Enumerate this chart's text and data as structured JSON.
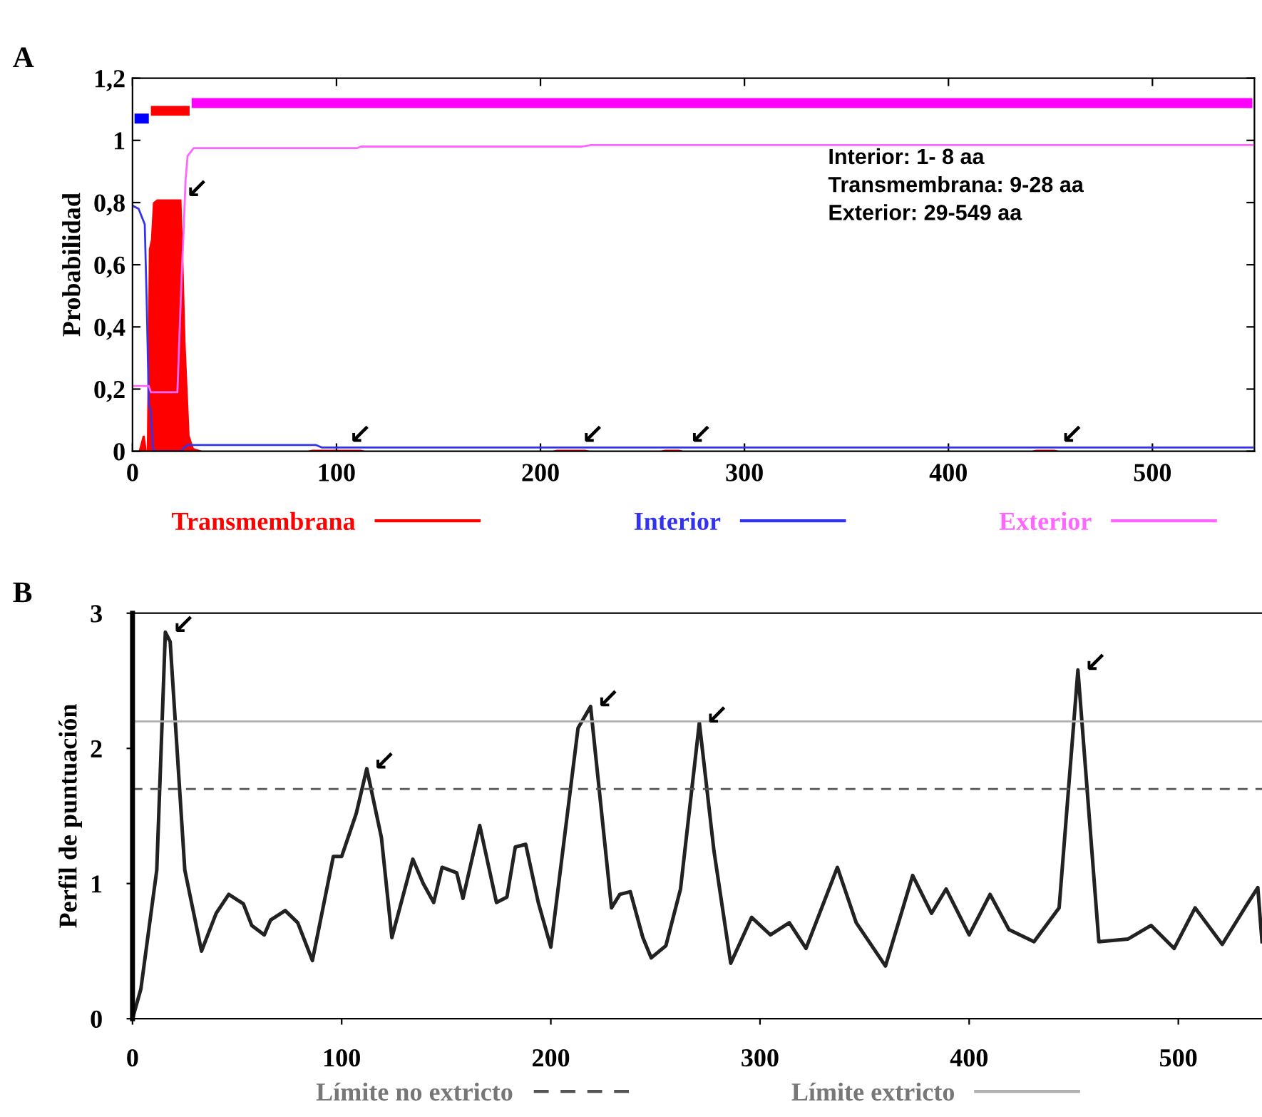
{
  "chart_data": [
    {
      "type": "line",
      "ylabel": "Probabilidad",
      "xlim": [
        0,
        550
      ],
      "ylim": [
        0,
        1.2
      ],
      "xticks": [
        0,
        100,
        200,
        300,
        400,
        500
      ],
      "yticks": [
        0,
        {
          "value": 0.2,
          "label": "0,2"
        },
        {
          "value": 0.4,
          "label": "0,4"
        },
        {
          "value": 0.6,
          "label": "0,6"
        },
        {
          "value": 0.8,
          "label": "0,8"
        },
        1,
        {
          "value": 1.2,
          "label": "1,2"
        }
      ],
      "legend": "bottom",
      "grid": false,
      "annotations": [
        "A",
        "Interior: 1- 8 aa",
        "Transmembrana: 9-28 aa",
        "Exterior: 29-549 aa",
        {
          "text": "↙",
          "x": 23,
          "y": 0.82
        },
        {
          "text": "↙",
          "x": 103,
          "y": 0.03
        },
        {
          "text": "↙",
          "x": 217,
          "y": 0.03
        },
        {
          "text": "↙",
          "x": 270,
          "y": 0.03
        },
        {
          "text": "↙",
          "x": 452,
          "y": 0.03
        }
      ],
      "series": [
        {
          "name": "Transmembrana",
          "type": "area",
          "color": "#ff0000",
          "x": [
            0,
            3,
            5,
            6,
            7,
            8,
            9,
            10,
            12,
            24,
            25,
            26,
            27,
            28,
            30,
            35,
            85,
            88,
            112,
            115,
            205,
            208,
            222,
            225,
            258,
            261,
            268,
            271,
            440,
            443,
            452,
            455,
            549
          ],
          "values": [
            0,
            0,
            0.05,
            0.05,
            0,
            0.65,
            0.68,
            0.8,
            0.81,
            0.81,
            0.6,
            0.35,
            0.2,
            0.05,
            0.01,
            0,
            0,
            0.005,
            0.005,
            0,
            0,
            0.005,
            0.005,
            0,
            0,
            0.005,
            0.005,
            0,
            0,
            0.005,
            0.005,
            0,
            0
          ]
        },
        {
          "name": "Interior",
          "color": "#3333ee",
          "x": [
            0,
            3,
            6,
            7,
            8,
            9,
            10,
            11,
            24,
            25,
            27,
            90,
            93,
            549
          ],
          "values": [
            0.79,
            0.78,
            0.73,
            0.47,
            0.15,
            0.13,
            0.01,
            0,
            0,
            0.01,
            0.02,
            0.02,
            0.012,
            0.012
          ]
        },
        {
          "name": "Exterior",
          "color": "#ff66ff",
          "x": [
            0,
            8,
            9,
            22,
            24,
            25,
            26,
            27,
            30,
            110,
            112,
            220,
            225,
            549
          ],
          "values": [
            0.21,
            0.21,
            0.19,
            0.19,
            0.55,
            0.7,
            0.87,
            0.95,
            0.975,
            0.975,
            0.98,
            0.98,
            0.985,
            0.985
          ]
        },
        {
          "type": "step",
          "color": "#0000ff",
          "x": [
            1,
            8
          ],
          "values": [
            1.07,
            1.07
          ]
        },
        {
          "type": "step",
          "color": "#ff0000",
          "x": [
            9,
            28
          ],
          "values": [
            1.095,
            1.095
          ]
        },
        {
          "type": "step",
          "color": "#ff00ff",
          "x": [
            29,
            549
          ],
          "values": [
            1.12,
            1.12
          ]
        }
      ]
    },
    {
      "type": "line",
      "ylabel": "Perfil de puntuación",
      "xlim": [
        0,
        540
      ],
      "ylim": [
        0,
        3
      ],
      "xticks": [
        0,
        100,
        200,
        300,
        400,
        500
      ],
      "yticks": [
        0,
        1,
        2,
        3
      ],
      "grid": false,
      "legend": "bottom",
      "annotations": [
        "B",
        {
          "text": "↙",
          "x": 16,
          "y": 2.86
        },
        {
          "text": "↙",
          "x": 112,
          "y": 1.85
        },
        {
          "text": "↙",
          "x": 219,
          "y": 2.31
        },
        {
          "text": "↙",
          "x": 271,
          "y": 2.19
        },
        {
          "text": "↙",
          "x": 452,
          "y": 2.58
        }
      ],
      "ref_lines": [
        {
          "axis": "y",
          "value": 1.7,
          "label": "Límite no extricto",
          "color": "#555555",
          "line_style": "dashed"
        },
        {
          "axis": "y",
          "value": 2.2,
          "label": "Límite extricto",
          "color": "#b0b0b0",
          "line_style": "solid"
        }
      ],
      "series": [
        {
          "color": "#222222",
          "x": [
            0,
            4,
            11.6,
            15.7,
            18,
            25,
            33,
            40,
            46,
            53,
            57,
            63,
            66,
            73,
            79,
            86,
            96,
            100,
            107,
            112,
            119,
            124,
            134,
            139,
            144,
            148,
            155,
            158,
            166,
            174,
            179,
            183,
            188,
            194,
            200,
            213,
            219,
            229,
            233,
            238,
            244,
            248,
            255,
            262,
            271,
            278,
            286,
            296,
            305,
            314,
            322,
            337,
            346,
            360,
            373,
            382,
            389,
            400,
            410,
            419,
            431,
            443,
            452,
            462,
            476,
            487,
            498,
            508,
            521,
            533,
            538,
            540
          ],
          "values": [
            0,
            0.22,
            1.1,
            2.86,
            2.79,
            1.1,
            0.5,
            0.78,
            0.92,
            0.85,
            0.69,
            0.62,
            0.73,
            0.8,
            0.71,
            0.43,
            1.2,
            1.2,
            1.52,
            1.85,
            1.34,
            0.6,
            1.18,
            1.0,
            0.86,
            1.12,
            1.08,
            0.89,
            1.43,
            0.86,
            0.9,
            1.27,
            1.29,
            0.86,
            0.53,
            2.15,
            2.31,
            0.82,
            0.92,
            0.94,
            0.6,
            0.45,
            0.54,
            0.96,
            2.19,
            1.24,
            0.41,
            0.75,
            0.62,
            0.71,
            0.52,
            1.12,
            0.71,
            0.39,
            1.06,
            0.78,
            0.96,
            0.62,
            0.92,
            0.66,
            0.57,
            0.82,
            2.58,
            0.57,
            0.59,
            0.69,
            0.52,
            0.82,
            0.55,
            0.85,
            0.97,
            0.57
          ]
        }
      ]
    }
  ]
}
